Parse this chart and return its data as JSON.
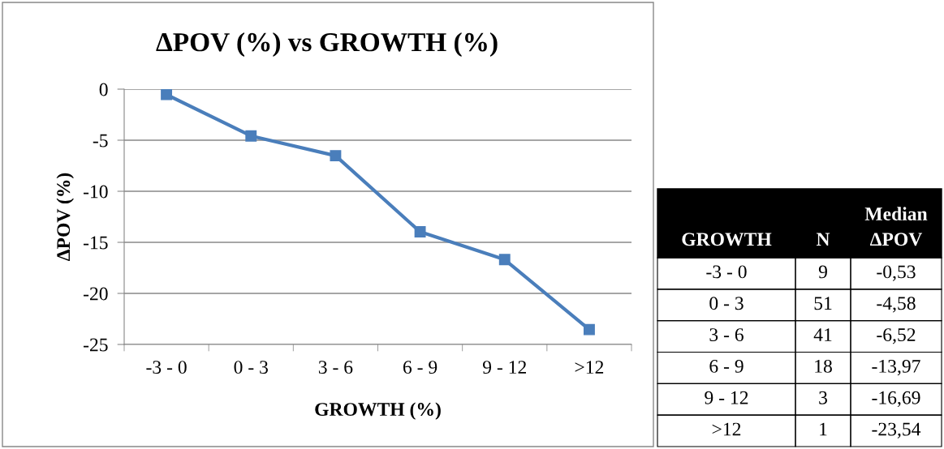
{
  "chart_data": {
    "type": "line",
    "title": "ΔPOV (%) vs GROWTH (%)",
    "xlabel": "GROWTH (%)",
    "ylabel": "ΔPOV (%)",
    "categories": [
      "-3 - 0",
      "0 - 3",
      "3 - 6",
      "6 - 9",
      "9 - 12",
      ">12"
    ],
    "values": [
      -0.53,
      -4.58,
      -6.52,
      -13.97,
      -16.69,
      -23.54
    ],
    "color": "#4a7ebb",
    "marker": "square",
    "line_style": "solid",
    "ylim": [
      -25,
      0
    ],
    "yticks": [
      0,
      -5,
      -10,
      -15,
      -20,
      -25
    ],
    "grid": "y",
    "annotations": [
      "GROWTH",
      "N",
      "Median\nΔPOV",
      "9",
      "51",
      "41",
      "18",
      "3",
      "1",
      "-0,53",
      "-4,58",
      "-6,52",
      "-13,97",
      "-16,69",
      "-23,54"
    ]
  }
}
